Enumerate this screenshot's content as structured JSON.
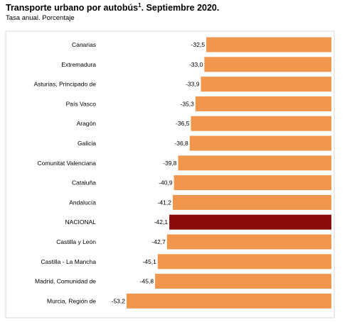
{
  "header": {
    "title": "Transporte urbano por autobús",
    "title_sup": "1",
    "title_suffix": ". Septiembre 2020.",
    "subtitle": "Tasa anual. Porcentaje"
  },
  "colors": {
    "bar": "#F0974D",
    "highlight": "#8B0A0A",
    "frame": "#D9D9D9"
  },
  "chart_data": {
    "type": "bar",
    "orientation": "horizontal",
    "title": "Transporte urbano por autobús. Septiembre 2020.",
    "subtitle": "Tasa anual. Porcentaje",
    "categories": [
      "Canarias",
      "Extremadura",
      "Asturias, Principado de",
      "País Vasco",
      "Aragón",
      "Galicia",
      "Comunitat Valenciana",
      "Cataluña",
      "Andalucía",
      "NACIONAL",
      "Castilla y León",
      "Castilla - La Mancha",
      "Madrid, Comunidad de",
      "Murcia, Región de"
    ],
    "values": [
      -32.5,
      -33.0,
      -33.9,
      -35.3,
      -36.5,
      -36.8,
      -39.8,
      -40.9,
      -41.2,
      -42.1,
      -42.7,
      -45.1,
      -45.8,
      -53.2
    ],
    "value_labels": [
      "-32,5",
      "-33,0",
      "-33,9",
      "-35,3",
      "-36,5",
      "-36,8",
      "-39,8",
      "-40,9",
      "-41,2",
      "-42,1",
      "-42,7",
      "-45,1",
      "-45,8",
      "-53,2"
    ],
    "highlight": "NACIONAL",
    "xlim": [
      -53.2,
      0
    ],
    "grid": false,
    "legend": "none"
  }
}
